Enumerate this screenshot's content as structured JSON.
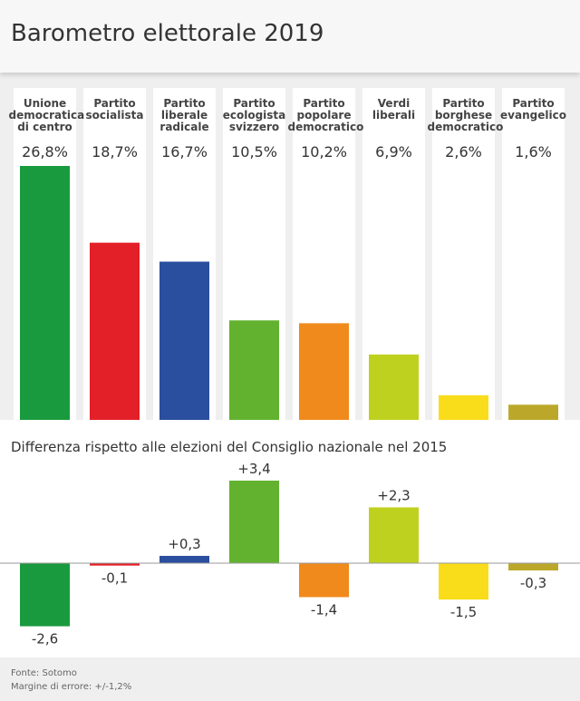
{
  "title": "Barometro elettorale 2019",
  "chart_data": [
    {
      "type": "bar",
      "categories": [
        "Unione\ndemocratica\ndi centro",
        "Partito\nsocialista",
        "Partito\nliberale\nradicale",
        "Partito\necologista\nsvizzero",
        "Partito\npopolare\ndemocratico",
        "Verdi\nliberali",
        "Partito\nborghese\ndemocratico",
        "Partito\nevangelico"
      ],
      "values": [
        26.8,
        18.7,
        16.7,
        10.5,
        10.2,
        6.9,
        2.6,
        1.6
      ],
      "value_labels": [
        "26,8%",
        "18,7%",
        "16,7%",
        "10,5%",
        "10,2%",
        "6,9%",
        "2,6%",
        "1,6%"
      ],
      "colors": [
        "#1a9a3e",
        "#e32028",
        "#2a4f9e",
        "#62b22f",
        "#f08a1c",
        "#bfd11f",
        "#f9dd1a",
        "#bba82a"
      ]
    },
    {
      "type": "bar",
      "title": "Differenza rispetto alle elezioni del Consiglio nazionale nel 2015",
      "values": [
        -2.6,
        -0.1,
        0.3,
        3.4,
        -1.4,
        2.3,
        -1.5,
        -0.3
      ],
      "value_labels": [
        "-2,6",
        "-0,1",
        "+0,3",
        "+3,4",
        "-1,4",
        "+2,3",
        "-1,5",
        "-0,3"
      ],
      "colors": [
        "#1a9a3e",
        "#e32028",
        "#2a4f9e",
        "#62b22f",
        "#f08a1c",
        "#bfd11f",
        "#f9dd1a",
        "#bba82a"
      ]
    }
  ],
  "notes": [
    "Fonte: Sotomo",
    "Margine di errore: +/-1,2%"
  ]
}
